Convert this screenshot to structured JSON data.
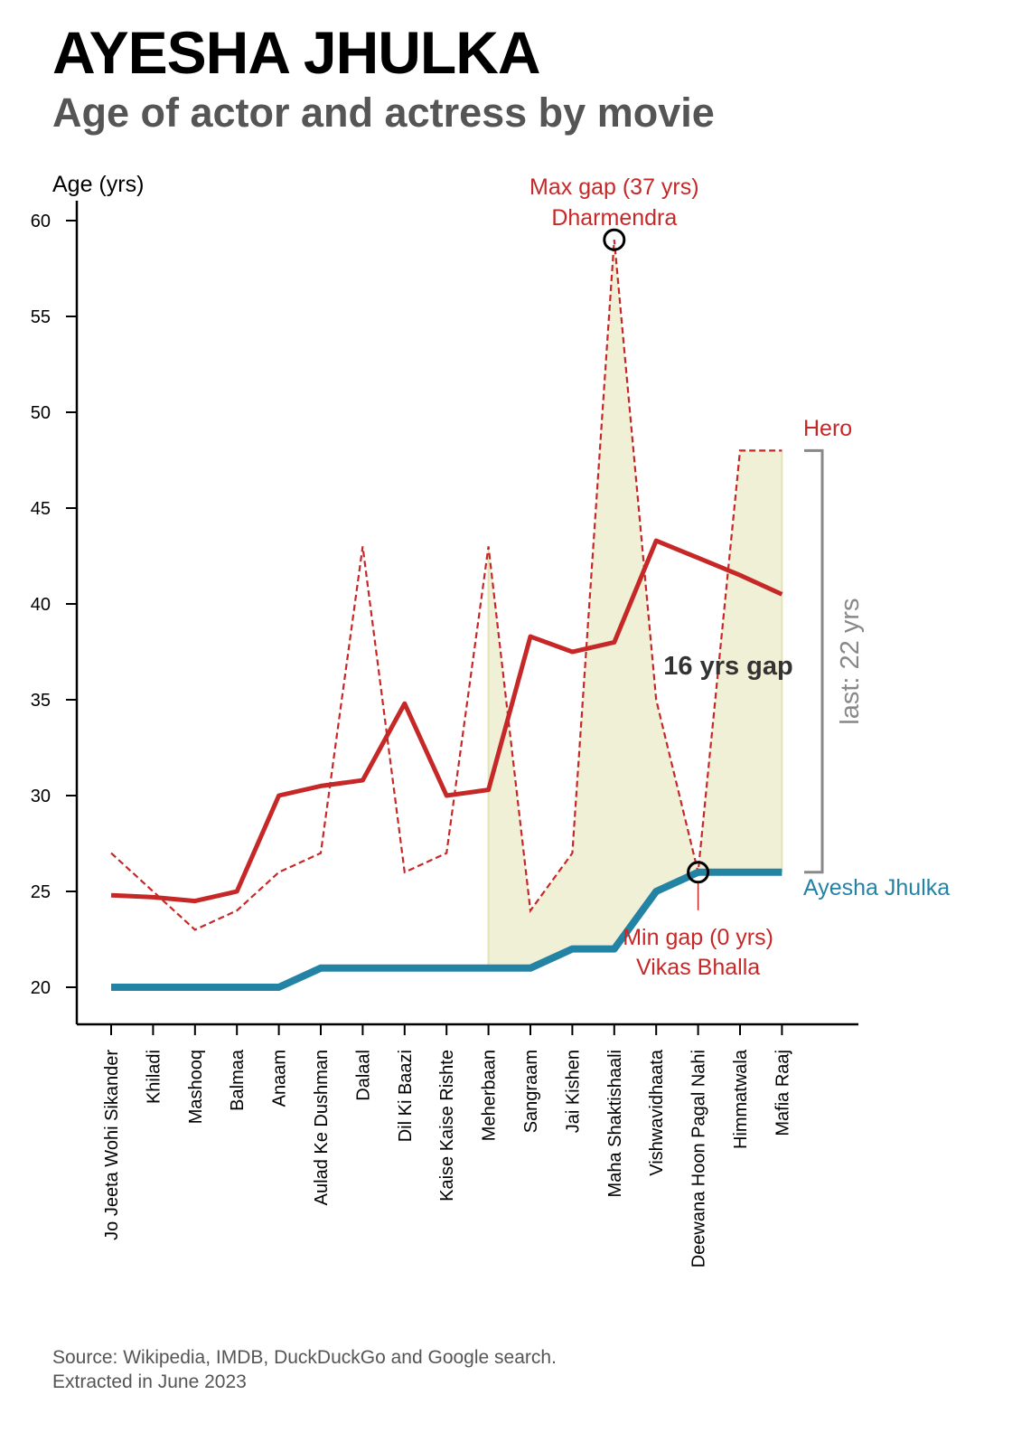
{
  "chart_data": {
    "type": "line",
    "title": "AYESHA JHULKA",
    "subtitle": "Age of actor and actress by movie",
    "ylabel": "Age (yrs)",
    "xlabel": "",
    "ylim": [
      18,
      62
    ],
    "yticks": [
      20,
      25,
      30,
      35,
      40,
      45,
      50,
      55,
      60
    ],
    "grid": false,
    "categories": [
      "Jo Jeeta Wohi Sikander",
      "Khiladi",
      "Mashooq",
      "Balmaa",
      "Anaam",
      "Aulad Ke Dushman",
      "Dalaal",
      "Dil Ki Baazi",
      "Kaise Kaise Rishte",
      "Meherbaan",
      "Sangraam",
      "Jai Kishen",
      "Maha Shaktishaali",
      "Vishwavidhaata",
      "Deewana Hoon Pagal Nahi",
      "Himmatwala",
      "Mafia Raaj"
    ],
    "series": [
      {
        "name": "Ayesha Jhulka",
        "style": "thick-solid",
        "color": "#2383a5",
        "values": [
          20,
          20,
          20,
          20,
          20,
          21,
          21,
          21,
          21,
          21,
          21,
          22,
          22,
          25,
          26,
          26,
          26
        ]
      },
      {
        "name": "Hero",
        "style": "dashed",
        "color": "#c62828",
        "values": [
          27,
          25,
          23,
          24,
          26,
          27,
          43,
          26,
          27,
          43,
          24,
          27,
          59,
          35,
          26,
          48,
          48
        ]
      },
      {
        "name": "",
        "style": "solid",
        "color": "#c62828",
        "values": [
          24.8,
          24.7,
          24.5,
          25,
          30,
          30.5,
          30.8,
          34.8,
          30,
          30.3,
          38.3,
          37.5,
          38,
          43.3,
          42.4,
          41.5,
          40.5
        ]
      }
    ],
    "shade_from_index": 9,
    "shade_color": "#f0f0d6",
    "annotations": {
      "max_gap_line1": "Max gap (37 yrs)",
      "max_gap_line2": "Dharmendra",
      "max_gap_index": 12,
      "min_gap_line1": "Min gap (0 yrs)",
      "min_gap_line2": "Vikas Bhalla",
      "min_gap_index": 14,
      "gap_label": "16 yrs gap",
      "last_label": "last: 22 yrs",
      "hero_label": "Hero",
      "actress_label": "Ayesha Jhulka"
    }
  },
  "source": {
    "line1": "Source: Wikipedia, IMDB, DuckDuckGo and Google search.",
    "line2": "Extracted in June 2023"
  }
}
